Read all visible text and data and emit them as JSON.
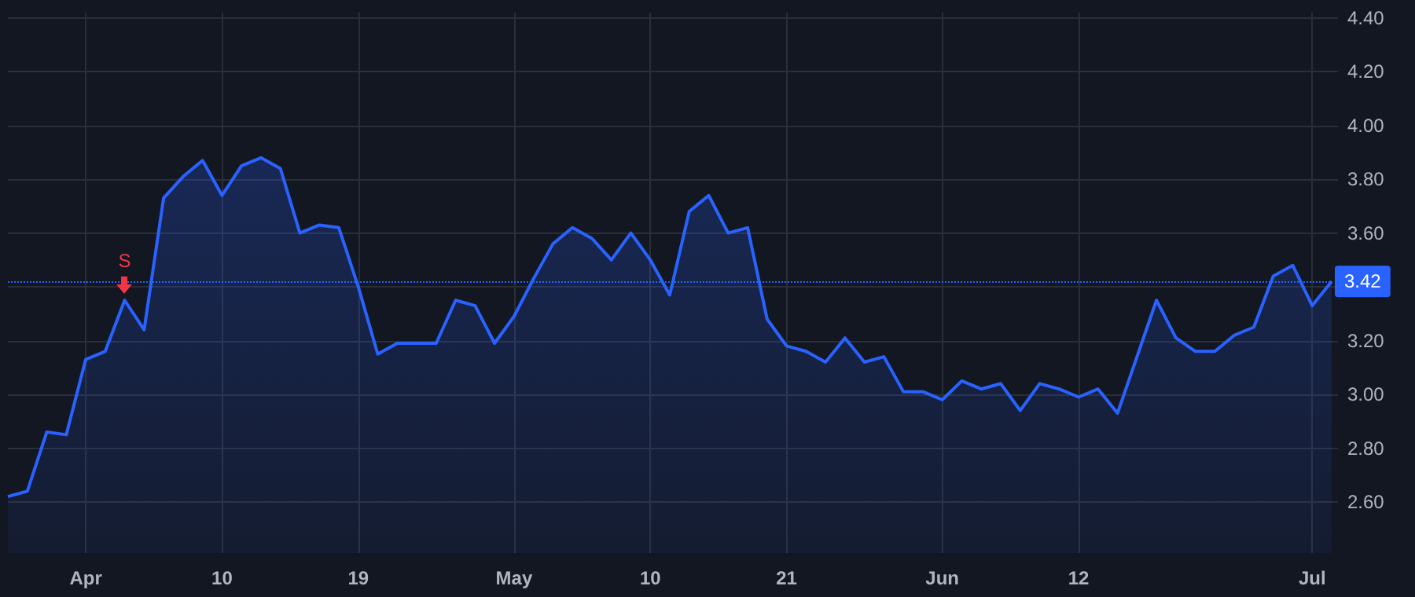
{
  "chart_data": {
    "type": "area",
    "categories": [
      null,
      null,
      null,
      null,
      "Apr",
      null,
      null,
      null,
      null,
      null,
      null,
      "10",
      null,
      null,
      null,
      null,
      null,
      null,
      "19",
      null,
      null,
      null,
      null,
      null,
      null,
      null,
      "May",
      null,
      null,
      null,
      null,
      null,
      null,
      "10",
      null,
      null,
      null,
      null,
      null,
      null,
      "21",
      null,
      null,
      null,
      null,
      null,
      null,
      null,
      "Jun",
      null,
      null,
      null,
      null,
      null,
      null,
      "12",
      null,
      null,
      null,
      null,
      null,
      null,
      null,
      null,
      null,
      null,
      null,
      "Jul",
      null
    ],
    "series": [
      {
        "color": "#2962ff",
        "values": [
          2.62,
          2.64,
          2.86,
          2.85,
          3.13,
          3.16,
          3.35,
          3.24,
          3.73,
          3.81,
          3.87,
          3.74,
          3.85,
          3.88,
          3.84,
          3.6,
          3.63,
          3.62,
          3.4,
          3.15,
          3.19,
          3.19,
          3.19,
          3.35,
          3.33,
          3.19,
          3.29,
          3.43,
          3.56,
          3.62,
          3.58,
          3.5,
          3.6,
          3.5,
          3.37,
          3.68,
          3.74,
          3.6,
          3.62,
          3.28,
          3.18,
          3.16,
          3.12,
          3.21,
          3.12,
          3.14,
          3.01,
          3.01,
          2.98,
          3.05,
          3.02,
          3.04,
          2.94,
          3.04,
          3.02,
          2.99,
          3.02,
          2.93,
          3.14,
          3.35,
          3.21,
          3.16,
          3.16,
          3.22,
          3.25,
          3.44,
          3.48,
          3.33,
          3.42
        ]
      }
    ],
    "ylim": [
      2.41,
      4.42
    ],
    "yticks": [
      {
        "value": 2.6,
        "label": "2.60"
      },
      {
        "value": 2.8,
        "label": "2.80"
      },
      {
        "value": 3.0,
        "label": "3.00"
      },
      {
        "value": 3.2,
        "label": "3.20"
      },
      {
        "value": 3.4,
        "label": null
      },
      {
        "value": 3.6,
        "label": "3.60"
      },
      {
        "value": 3.8,
        "label": "3.80"
      },
      {
        "value": 4.0,
        "label": "4.00"
      },
      {
        "value": 4.2,
        "label": "4.20"
      },
      {
        "value": 4.4,
        "label": "4.40"
      }
    ],
    "ref_lines": [
      {
        "axis": "y",
        "value": 3.42,
        "label": "3.42",
        "color": "#2962ff",
        "line_style": "dotted"
      }
    ],
    "annotations": [
      {
        "text": "S",
        "y": 3.35
      }
    ],
    "grid": true,
    "marker": "none",
    "line_style": "solid"
  }
}
